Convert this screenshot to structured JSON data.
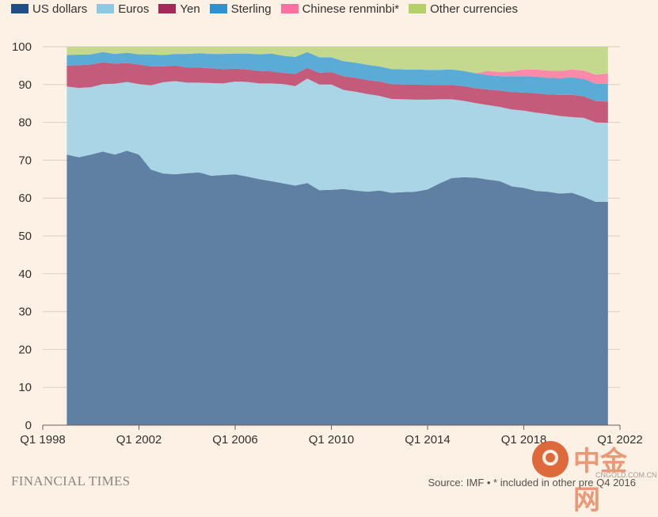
{
  "colors": {
    "us_dollars": "#5f80a3",
    "euros": "#a9d5e6",
    "yen": "#c55b7b",
    "sterling": "#5aabd6",
    "chinese_renminbi": "#fc88aa",
    "other_currencies": "#c5d98e",
    "background": "#fdf1e6",
    "grid": "#d9cdc2"
  },
  "legend": [
    {
      "label": "US dollars",
      "color": "#1f4f86"
    },
    {
      "label": "Euros",
      "color": "#8ec9e4"
    },
    {
      "label": "Yen",
      "color": "#a32a58"
    },
    {
      "label": "Sterling",
      "color": "#2f92d0"
    },
    {
      "label": "Chinese renminbi*",
      "color": "#fb6fa1"
    },
    {
      "label": "Other currencies",
      "color": "#b3d06a"
    }
  ],
  "footer": {
    "publisher": "FINANCIAL TIMES",
    "source": "Source: IMF • * included in other pre Q4 2016"
  },
  "watermark": {
    "name": "中金网",
    "url": "CNGOLD.COM.CN"
  },
  "chart_data": {
    "type": "area",
    "stacked": true,
    "ylim": [
      0,
      100
    ],
    "yticks": [
      0,
      10,
      20,
      30,
      40,
      50,
      60,
      70,
      80,
      90,
      100
    ],
    "xticks": [
      {
        "label": "Q1 1998",
        "x": 1998.0
      },
      {
        "label": "Q1 2002",
        "x": 2002.0
      },
      {
        "label": "Q1 2006",
        "x": 2006.0
      },
      {
        "label": "Q1 2010",
        "x": 2010.0
      },
      {
        "label": "Q1 2014",
        "x": 2014.0
      },
      {
        "label": "Q1 2018",
        "x": 2018.0
      },
      {
        "label": "Q1 2022",
        "x": 2022.0
      }
    ],
    "xlim": [
      1998.0,
      2022.0
    ],
    "grid": true,
    "legend_position": "top",
    "x": [
      1999.0,
      1999.5,
      2000.0,
      2000.5,
      2001.0,
      2001.5,
      2002.0,
      2002.5,
      2003.0,
      2003.5,
      2004.0,
      2004.5,
      2005.0,
      2005.5,
      2006.0,
      2006.5,
      2007.0,
      2007.5,
      2008.0,
      2008.5,
      2009.0,
      2009.5,
      2010.0,
      2010.5,
      2011.0,
      2011.5,
      2012.0,
      2012.5,
      2013.0,
      2013.5,
      2014.0,
      2014.5,
      2015.0,
      2015.5,
      2016.0,
      2016.5,
      2017.0,
      2017.5,
      2018.0,
      2018.5,
      2019.0,
      2019.5,
      2020.0,
      2020.5,
      2021.0,
      2021.5
    ],
    "series": [
      {
        "name": "US dollars",
        "key": "us_dollars",
        "values": [
          71.5,
          70.8,
          71.5,
          72.3,
          71.5,
          72.5,
          71.5,
          67.5,
          66.5,
          66.3,
          66.6,
          66.8,
          65.9,
          66.1,
          66.3,
          65.7,
          65.0,
          64.5,
          63.9,
          63.3,
          64.0,
          62.1,
          62.2,
          62.4,
          62.0,
          61.7,
          62.0,
          61.4,
          61.6,
          61.7,
          62.3,
          63.9,
          65.3,
          65.5,
          65.4,
          64.9,
          64.5,
          63.1,
          62.7,
          61.9,
          61.7,
          61.2,
          61.4,
          60.3,
          59.0,
          59.0
        ]
      },
      {
        "name": "Euros",
        "key": "euros",
        "values": [
          18.0,
          18.3,
          17.8,
          17.8,
          18.7,
          18.2,
          18.6,
          22.3,
          24.1,
          24.6,
          23.9,
          23.7,
          24.5,
          24.2,
          24.5,
          25.0,
          25.3,
          25.8,
          26.2,
          26.3,
          27.6,
          27.9,
          27.8,
          26.2,
          26.1,
          25.8,
          25.0,
          24.8,
          24.5,
          24.3,
          23.7,
          22.2,
          20.8,
          20.2,
          19.7,
          19.7,
          19.6,
          20.3,
          20.4,
          20.7,
          20.5,
          20.5,
          20.0,
          20.9,
          21.0,
          20.9
        ]
      },
      {
        "name": "Yen",
        "key": "yen",
        "values": [
          5.5,
          6.0,
          6.0,
          5.8,
          5.3,
          5.0,
          5.2,
          5.0,
          4.2,
          4.1,
          4.0,
          4.0,
          3.9,
          3.8,
          3.4,
          3.3,
          3.3,
          3.2,
          3.0,
          3.2,
          2.8,
          3.1,
          3.3,
          3.6,
          3.7,
          3.7,
          3.8,
          3.9,
          3.9,
          4.0,
          3.9,
          3.8,
          3.8,
          3.9,
          3.9,
          4.1,
          4.3,
          4.6,
          4.8,
          5.1,
          5.2,
          5.6,
          5.9,
          5.7,
          5.6,
          5.6
        ]
      },
      {
        "name": "Sterling",
        "key": "sterling",
        "values": [
          2.8,
          2.8,
          2.7,
          2.7,
          2.6,
          2.7,
          2.7,
          3.2,
          3.0,
          3.1,
          3.6,
          3.8,
          3.8,
          4.0,
          4.0,
          4.2,
          4.4,
          4.7,
          4.5,
          4.5,
          4.2,
          4.1,
          3.9,
          4.0,
          4.0,
          4.0,
          4.0,
          4.0,
          4.0,
          4.0,
          4.0,
          4.0,
          4.1,
          4.0,
          4.0,
          3.8,
          3.8,
          4.2,
          4.3,
          4.4,
          4.4,
          4.4,
          4.6,
          4.6,
          4.6,
          4.7
        ]
      },
      {
        "name": "Chinese renminbi*",
        "key": "chinese_renminbi",
        "values": [
          0.0,
          0.0,
          0.0,
          0.0,
          0.0,
          0.0,
          0.0,
          0.0,
          0.0,
          0.0,
          0.0,
          0.0,
          0.0,
          0.0,
          0.0,
          0.0,
          0.0,
          0.0,
          0.0,
          0.0,
          0.0,
          0.0,
          0.0,
          0.0,
          0.0,
          0.0,
          0.0,
          0.0,
          0.0,
          0.0,
          0.0,
          0.0,
          0.0,
          0.0,
          0.0,
          1.1,
          1.1,
          1.3,
          1.8,
          1.9,
          1.9,
          1.9,
          2.1,
          2.2,
          2.4,
          2.7
        ]
      },
      {
        "name": "Other currencies",
        "key": "other_currencies",
        "values": [
          2.2,
          2.1,
          2.0,
          1.4,
          1.9,
          1.6,
          2.0,
          2.0,
          2.2,
          1.9,
          1.9,
          1.7,
          1.9,
          1.9,
          1.8,
          1.8,
          2.0,
          1.8,
          2.4,
          2.7,
          1.4,
          2.8,
          2.8,
          3.8,
          4.2,
          4.8,
          5.2,
          5.9,
          6.0,
          6.0,
          6.1,
          6.1,
          6.0,
          6.4,
          7.0,
          6.4,
          6.7,
          6.5,
          6.0,
          6.0,
          6.3,
          6.4,
          6.0,
          6.3,
          7.4,
          7.1
        ]
      }
    ]
  }
}
